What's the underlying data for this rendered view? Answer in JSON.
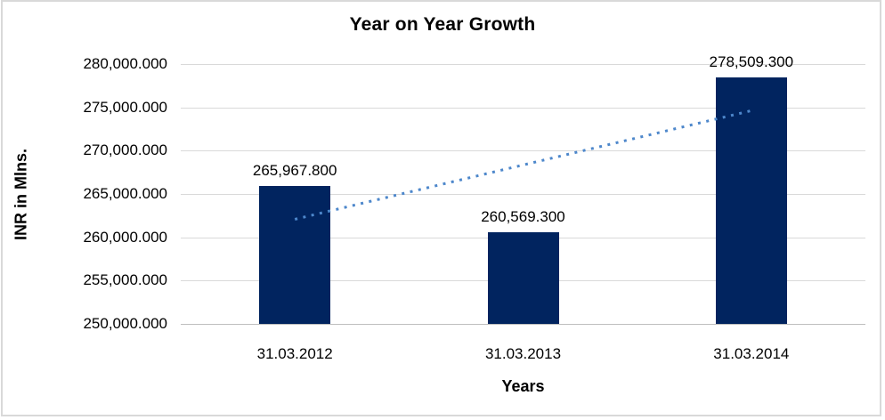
{
  "chart_data": {
    "type": "bar",
    "title": "Year on Year Growth",
    "xlabel": "Years",
    "ylabel": "INR in Mlns.",
    "categories": [
      "31.03.2012",
      "31.03.2013",
      "31.03.2014"
    ],
    "values": [
      265967.8,
      260569.3,
      278509.3
    ],
    "value_labels": [
      "265,967.800",
      "260,569.300",
      "278,509.300"
    ],
    "ylim": [
      250000,
      280000
    ],
    "ytick_step": 5000,
    "ytick_labels": [
      "250,000.000",
      "255,000.000",
      "260,000.000",
      "265,000.000",
      "270,000.000",
      "275,000.000",
      "280,000.000"
    ],
    "grid": true,
    "legend": "none",
    "trendline": {
      "kind": "linear",
      "style": "dotted"
    },
    "colors": {
      "bar": "#01245f",
      "trend": "#4d87cb",
      "grid": "#d9d9d9",
      "axis_line": "#bfbfbf",
      "text": "#000000",
      "border": "#d9d9d9",
      "background": "#ffffff"
    }
  }
}
